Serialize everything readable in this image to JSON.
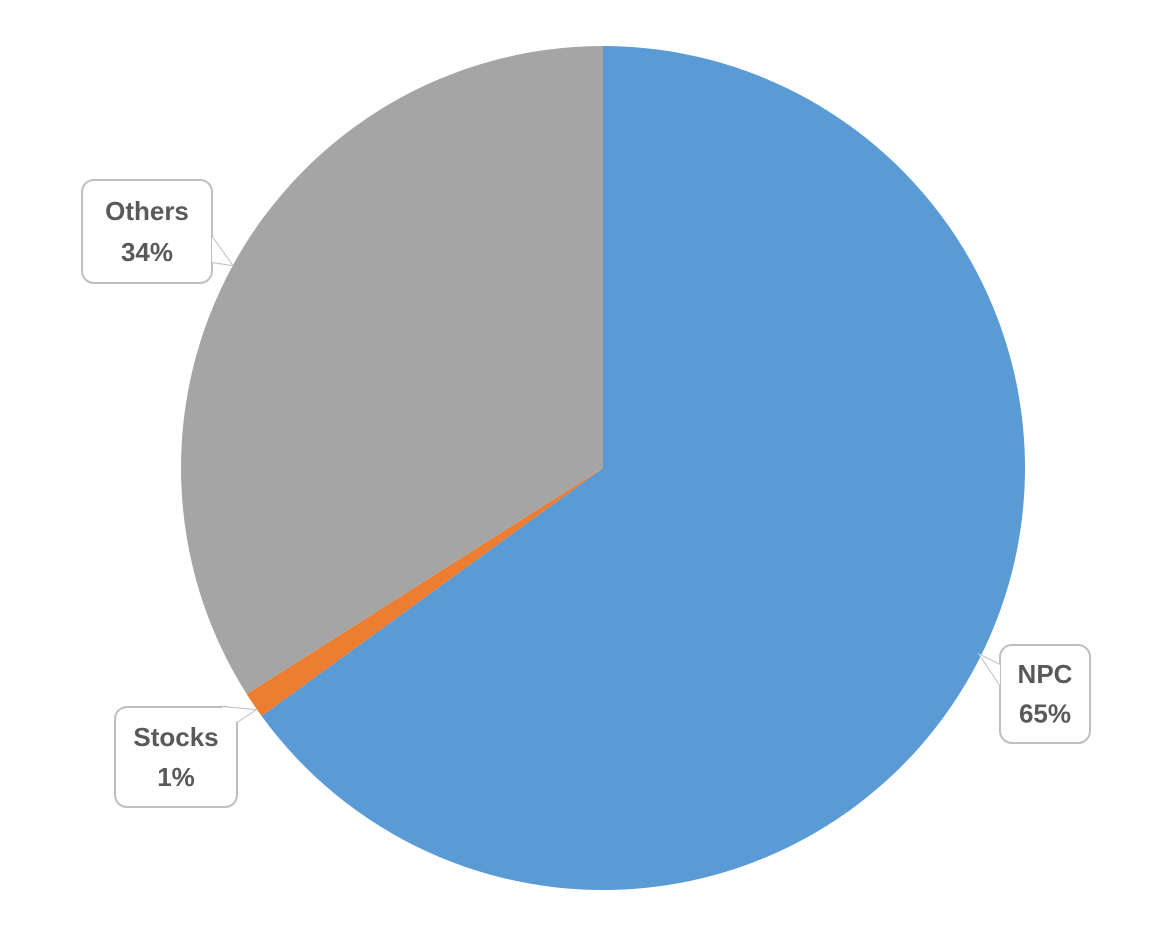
{
  "chart_data": {
    "type": "pie",
    "categories": [
      "NPC",
      "Stocks",
      "Others"
    ],
    "values": [
      65,
      1,
      34
    ],
    "value_labels": [
      "65%",
      "1%",
      "34%"
    ],
    "colors": [
      "#5b9bd5",
      "#ed7d31",
      "#a5a5a5"
    ]
  }
}
